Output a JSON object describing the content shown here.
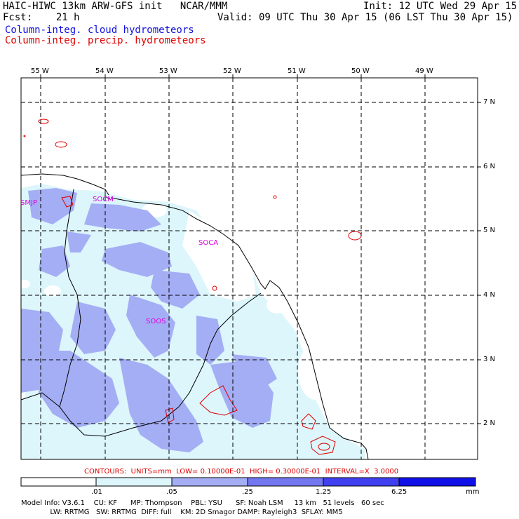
{
  "header": {
    "title_left": "HAIC-HIWC 13km ARW-GFS init   NCAR/MMM",
    "title_right": "Init: 12 UTC Wed 29 Apr 15",
    "fcst": "Fcst:    21 h",
    "valid": "Valid: 09 UTC Thu 30 Apr 15 (06 LST Thu 30 Apr 15)",
    "field1": "Column-integ. cloud hydrometeors",
    "field2": "Column-integ. precip. hydrometeors"
  },
  "map": {
    "lon_labels": [
      "55 W",
      "54 W",
      "53 W",
      "52 W",
      "51 W",
      "50 W",
      "49 W"
    ],
    "lat_labels": [
      "7 N",
      "6 N",
      "5 N",
      "4 N",
      "3 N",
      "2 N"
    ],
    "stations": [
      "SMJP",
      "SOCM",
      "SOCA",
      "SOOS"
    ]
  },
  "contours_line": "CONTOURS:  UNITS=mm  LOW= 0.10000E-01  HIGH= 0.30000E-01  INTERVAL=X  3.0000",
  "colorbar": {
    "ticks": [
      ".01",
      ".05",
      ".25",
      "1.25",
      "6.25"
    ],
    "unit": "mm",
    "colors": [
      "#ffffff",
      "#dcf6fc",
      "#a4aef4",
      "#7277f0",
      "#4040f0",
      "#1010e8"
    ]
  },
  "footer": {
    "line1": "Model Info: V3.6.1    CU: KF      MP: Thompson    PBL: YSU      SF: Noah LSM     13 km   51 levels   60 sec",
    "line2": "             LW: RRTMG   SW: RRTMG  DIFF: full    KM: 2D Smagor DAMP: Rayleigh3  SFLAY: MM5"
  }
}
